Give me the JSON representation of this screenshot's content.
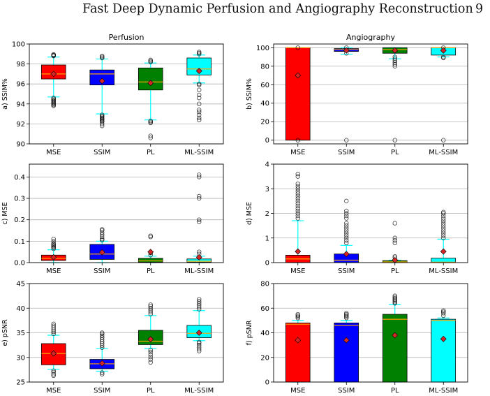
{
  "header": {
    "title": "Fast Deep Dynamic Perfusion and Angiography Reconstruction",
    "page_number": "9"
  },
  "colors": {
    "MSE": "#ff0000",
    "SSIM": "#0000ff",
    "PL": "#008000",
    "ML-SSIM": "#00ffff",
    "whisker": "#00ffff",
    "median": "#ffa500",
    "mean_marker": "#d62728",
    "grid": "#b0b0b0"
  },
  "chart_data": [
    {
      "type": "box",
      "panel": "a",
      "title": "Perfusion",
      "ylabel": "a) SSIM%",
      "categories": [
        "MSE",
        "SSIM",
        "PL",
        "ML-SSIM"
      ],
      "ylim": [
        90,
        100
      ],
      "yticks": [
        90,
        92,
        94,
        96,
        98,
        100
      ],
      "grid": "y",
      "boxes": [
        {
          "q1": 96.5,
          "median": 97.0,
          "q3": 97.9,
          "whisker_low": 94.7,
          "whisker_high": 98.7,
          "mean": 97.0,
          "outliers": [
            93.8,
            93.9,
            94.0,
            94.1,
            94.2,
            94.3,
            94.4,
            94.5,
            94.6,
            98.8,
            98.85,
            98.9,
            98.95
          ]
        },
        {
          "q1": 95.9,
          "median": 97.0,
          "q3": 97.4,
          "whisker_low": 93.0,
          "whisker_high": 98.5,
          "mean": 96.3,
          "outliers": [
            91.8,
            92.0,
            92.2,
            92.3,
            92.4,
            92.5,
            92.6,
            92.7,
            92.8,
            92.9,
            98.6,
            98.7,
            98.8
          ]
        },
        {
          "q1": 95.4,
          "median": 96.2,
          "q3": 97.6,
          "whisker_low": 92.4,
          "whisker_high": 98.1,
          "mean": 96.1,
          "outliers": [
            90.6,
            90.8,
            92.1,
            92.2,
            92.3,
            98.2,
            98.3,
            98.4
          ]
        },
        {
          "q1": 96.9,
          "median": 97.5,
          "q3": 98.6,
          "whisker_low": 96.1,
          "whisker_high": 98.9,
          "mean": 97.3,
          "outliers": [
            92.4,
            92.6,
            92.9,
            93.2,
            93.4,
            94.0,
            94.6,
            94.9,
            95.4,
            95.9,
            96.0,
            99.0,
            99.1,
            99.2
          ]
        }
      ]
    },
    {
      "type": "box",
      "panel": "b",
      "title": "Angiography",
      "ylabel": "b) SSIM%",
      "categories": [
        "MSE",
        "SSIM",
        "PL",
        "ML-SSIM"
      ],
      "ylim": [
        -4,
        104
      ],
      "yticks": [
        0,
        20,
        40,
        60,
        80,
        100
      ],
      "grid": "y",
      "boxes": [
        {
          "q1": 0,
          "median": 100,
          "q3": 100,
          "whisker_low": 0,
          "whisker_high": 100,
          "mean": 70,
          "outliers": [
            0,
            100
          ]
        },
        {
          "q1": 96,
          "median": 98,
          "q3": 99,
          "whisker_low": 93,
          "whisker_high": 100,
          "mean": 97,
          "outliers": [
            0,
            94,
            100
          ]
        },
        {
          "q1": 94,
          "median": 98,
          "q3": 100,
          "whisker_low": 88,
          "whisker_high": 100,
          "mean": 97,
          "outliers": [
            0,
            80,
            82,
            84,
            86,
            88,
            90
          ]
        },
        {
          "q1": 92,
          "median": 100,
          "q3": 100,
          "whisker_low": 90,
          "whisker_high": 100,
          "mean": 97,
          "outliers": [
            0,
            89,
            90,
            100
          ]
        }
      ]
    },
    {
      "type": "box",
      "panel": "c",
      "ylabel": "c) MSE",
      "categories": [
        "MSE",
        "SSIM",
        "PL",
        "ML-SSIM"
      ],
      "ylim": [
        0,
        0.46
      ],
      "yticks": [
        0.0,
        0.1,
        0.2,
        0.3,
        0.4
      ],
      "grid": "y",
      "boxes": [
        {
          "q1": 0.01,
          "median": 0.02,
          "q3": 0.035,
          "whisker_low": 0.0,
          "whisker_high": 0.06,
          "mean": 0.025,
          "outliers": [
            0.065,
            0.07,
            0.075,
            0.08,
            0.085,
            0.09,
            0.1,
            0.11
          ]
        },
        {
          "q1": 0.015,
          "median": 0.04,
          "q3": 0.085,
          "whisker_low": 0.0,
          "whisker_high": 0.1,
          "mean": 0.048,
          "outliers": [
            0.105,
            0.11,
            0.12,
            0.13,
            0.14,
            0.15,
            0.155
          ]
        },
        {
          "q1": 0.002,
          "median": 0.008,
          "q3": 0.02,
          "whisker_low": 0.0,
          "whisker_high": 0.03,
          "mean": 0.05,
          "outliers": [
            0.035,
            0.045,
            0.12,
            0.125
          ]
        },
        {
          "q1": 0.002,
          "median": 0.006,
          "q3": 0.017,
          "whisker_low": 0.0,
          "whisker_high": 0.03,
          "mean": 0.025,
          "outliers": [
            0.04,
            0.05,
            0.19,
            0.2,
            0.3,
            0.31,
            0.4,
            0.41
          ]
        }
      ]
    },
    {
      "type": "box",
      "panel": "d",
      "ylabel": "d) MSE",
      "categories": [
        "MSE",
        "SSIM",
        "PL",
        "ML-SSIM"
      ],
      "ylim": [
        0,
        4
      ],
      "yticks": [
        0,
        1,
        2,
        3,
        4
      ],
      "grid": "y",
      "boxes": [
        {
          "q1": 0.0,
          "median": 0.15,
          "q3": 0.3,
          "whisker_low": 0.0,
          "whisker_high": 1.7,
          "mean": 0.45,
          "outliers": [
            1.8,
            1.9,
            2.0,
            2.1,
            2.2,
            2.3,
            2.4,
            2.5,
            2.6,
            2.7,
            2.8,
            2.9,
            3.0,
            3.1,
            3.2,
            3.5,
            3.6
          ]
        },
        {
          "q1": 0.0,
          "median": 0.1,
          "q3": 0.35,
          "whisker_low": 0.0,
          "whisker_high": 0.7,
          "mean": 0.35,
          "outliers": [
            0.8,
            0.9,
            1.0,
            1.1,
            1.2,
            1.3,
            1.4,
            1.5,
            1.6,
            1.8,
            1.9,
            2.0,
            2.1,
            2.5
          ]
        },
        {
          "q1": 0.0,
          "median": 0.03,
          "q3": 0.08,
          "whisker_low": 0.0,
          "whisker_high": 0.1,
          "mean": 0.1,
          "outliers": [
            0.2,
            0.25,
            0.8,
            0.9,
            1.0,
            1.6
          ]
        },
        {
          "q1": 0.0,
          "median": 0.02,
          "q3": 0.18,
          "whisker_low": 0.0,
          "whisker_high": 0.95,
          "mean": 0.45,
          "outliers": [
            1.0,
            1.1,
            1.2,
            1.3,
            1.4,
            1.5,
            1.6,
            1.7,
            1.8,
            1.9,
            2.0,
            2.05
          ]
        }
      ]
    },
    {
      "type": "box",
      "panel": "e",
      "ylabel": "e) pSNR",
      "categories": [
        "MSE",
        "SSIM",
        "PL",
        "ML-SSIM"
      ],
      "ylim": [
        25,
        45
      ],
      "yticks": [
        25,
        30,
        35,
        40,
        45
      ],
      "grid": "y",
      "boxes": [
        {
          "q1": 28.5,
          "median": 30.8,
          "q3": 32.8,
          "whisker_low": 27.6,
          "whisker_high": 34.5,
          "mean": 30.8,
          "outliers": [
            26.3,
            26.6,
            27.0,
            27.3,
            34.8,
            35.2,
            35.6,
            36.0,
            36.4,
            36.8
          ]
        },
        {
          "q1": 27.7,
          "median": 28.7,
          "q3": 29.6,
          "whisker_low": 27.2,
          "whisker_high": 31.8,
          "mean": 28.8,
          "outliers": [
            26.6,
            26.9,
            32.0,
            32.4,
            32.8,
            33.2,
            33.6,
            34.0,
            34.4,
            34.8,
            35.0
          ]
        },
        {
          "q1": 32.6,
          "median": 33.3,
          "q3": 35.5,
          "whisker_low": 31.8,
          "whisker_high": 38.5,
          "mean": 33.7,
          "outliers": [
            29.0,
            29.6,
            30.1,
            30.6,
            31.1,
            31.5,
            38.8,
            39.2,
            39.6,
            40.0,
            40.4,
            40.7
          ]
        },
        {
          "q1": 34.0,
          "median": 34.9,
          "q3": 36.5,
          "whisker_low": 33.4,
          "whisker_high": 39.5,
          "mean": 35.0,
          "outliers": [
            31.3,
            31.7,
            32.1,
            32.5,
            32.9,
            33.1,
            39.8,
            40.2,
            40.6,
            41.0,
            41.4,
            41.8
          ]
        }
      ]
    },
    {
      "type": "box",
      "panel": "f",
      "ylabel": "f) pSNR",
      "categories": [
        "MSE",
        "SSIM",
        "PL",
        "ML-SSIM"
      ],
      "ylim": [
        0,
        80
      ],
      "yticks": [
        0,
        20,
        40,
        60,
        80
      ],
      "grid": "y",
      "boxes": [
        {
          "q1": 0,
          "median": 47,
          "q3": 48,
          "whisker_low": 0,
          "whisker_high": 50,
          "mean": 34,
          "outliers": [
            52,
            53,
            54,
            55
          ]
        },
        {
          "q1": 0,
          "median": 46,
          "q3": 48,
          "whisker_low": 0,
          "whisker_high": 50,
          "mean": 34,
          "outliers": [
            52,
            53,
            54,
            55,
            56
          ]
        },
        {
          "q1": 0,
          "median": 51,
          "q3": 55,
          "whisker_low": 0,
          "whisker_high": 63,
          "mean": 38,
          "outliers": [
            64,
            65,
            66,
            67,
            68,
            69,
            70
          ]
        },
        {
          "q1": 0,
          "median": 50,
          "q3": 51,
          "whisker_low": 0,
          "whisker_high": 52,
          "mean": 35,
          "outliers": [
            54,
            56,
            57,
            58
          ]
        }
      ]
    }
  ]
}
